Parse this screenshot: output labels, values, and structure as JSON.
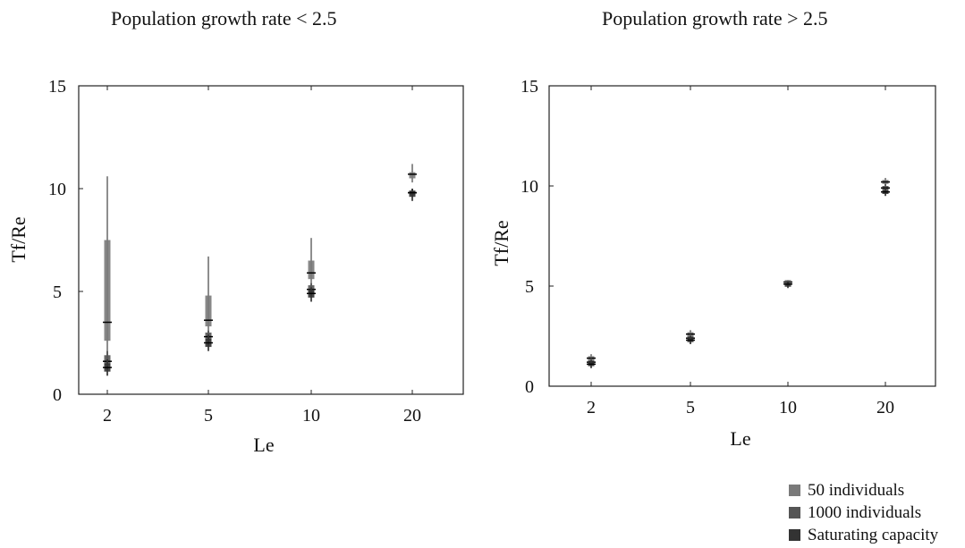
{
  "colors": {
    "series_50": "#7a7a7a",
    "series_1000": "#555555",
    "series_saturating": "#333333"
  },
  "legend": {
    "items": [
      {
        "label": "50 individuals",
        "color": "#7a7a7a"
      },
      {
        "label": "1000 individuals",
        "color": "#555555"
      },
      {
        "label": "Saturating capacity",
        "color": "#333333"
      }
    ]
  },
  "chart_data": [
    {
      "type": "box",
      "title": "Population growth rate < 2.5",
      "xlabel": "Le",
      "ylabel": "Tf/Re",
      "categories": [
        "2",
        "5",
        "10",
        "20"
      ],
      "yticks": [
        "0",
        "5",
        "10",
        "15"
      ],
      "ylim": [
        0,
        15
      ],
      "grid": false,
      "series": [
        {
          "name": "50 individuals",
          "boxes": [
            {
              "category": "2",
              "min": 1.8,
              "q1": 2.6,
              "median": 3.5,
              "q3": 7.5,
              "max": 10.6
            },
            {
              "category": "5",
              "min": 3.0,
              "q1": 3.3,
              "median": 3.6,
              "q3": 4.8,
              "max": 6.7
            },
            {
              "category": "10",
              "min": 5.3,
              "q1": 5.6,
              "median": 5.9,
              "q3": 6.5,
              "max": 7.6
            },
            {
              "category": "20",
              "min": 10.3,
              "q1": 10.5,
              "median": 10.7,
              "q3": 10.8,
              "max": 11.2
            }
          ]
        },
        {
          "name": "1000 individuals",
          "boxes": [
            {
              "category": "2",
              "min": 1.2,
              "q1": 1.4,
              "median": 1.6,
              "q3": 1.9,
              "max": 2.1
            },
            {
              "category": "5",
              "min": 2.4,
              "q1": 2.6,
              "median": 2.8,
              "q3": 3.0,
              "max": 3.1
            },
            {
              "category": "10",
              "min": 4.8,
              "q1": 4.9,
              "median": 5.1,
              "q3": 5.3,
              "max": 5.4
            },
            {
              "category": "20",
              "min": 9.6,
              "q1": 9.7,
              "median": 9.8,
              "q3": 9.9,
              "max": 10.0
            }
          ]
        },
        {
          "name": "Saturating capacity",
          "boxes": [
            {
              "category": "2",
              "min": 0.9,
              "q1": 1.1,
              "median": 1.3,
              "q3": 1.5,
              "max": 1.7
            },
            {
              "category": "5",
              "min": 2.1,
              "q1": 2.3,
              "median": 2.5,
              "q3": 2.7,
              "max": 2.9
            },
            {
              "category": "10",
              "min": 4.5,
              "q1": 4.7,
              "median": 4.9,
              "q3": 5.1,
              "max": 5.2
            },
            {
              "category": "20",
              "min": 9.4,
              "q1": 9.6,
              "median": 9.8,
              "q3": 9.9,
              "max": 10.0
            }
          ]
        }
      ]
    },
    {
      "type": "box",
      "title": "Population growth rate > 2.5",
      "xlabel": "Le",
      "ylabel": "Tf/Re",
      "categories": [
        "2",
        "5",
        "10",
        "20"
      ],
      "yticks": [
        "0",
        "5",
        "10",
        "15"
      ],
      "ylim": [
        0,
        15
      ],
      "grid": false,
      "series": [
        {
          "name": "50 individuals",
          "boxes": [
            {
              "category": "2",
              "min": 1.2,
              "q1": 1.3,
              "median": 1.4,
              "q3": 1.5,
              "max": 1.6
            },
            {
              "category": "5",
              "min": 2.4,
              "q1": 2.5,
              "median": 2.6,
              "q3": 2.7,
              "max": 2.8
            },
            {
              "category": "10",
              "min": 5.1,
              "q1": 5.2,
              "median": 5.2,
              "q3": 5.3,
              "max": 5.3
            },
            {
              "category": "20",
              "min": 10.0,
              "q1": 10.1,
              "median": 10.2,
              "q3": 10.3,
              "max": 10.4
            }
          ]
        },
        {
          "name": "1000 individuals",
          "boxes": [
            {
              "category": "2",
              "min": 1.0,
              "q1": 1.1,
              "median": 1.2,
              "q3": 1.3,
              "max": 1.4
            },
            {
              "category": "5",
              "min": 2.2,
              "q1": 2.3,
              "median": 2.4,
              "q3": 2.5,
              "max": 2.6
            },
            {
              "category": "10",
              "min": 5.0,
              "q1": 5.1,
              "median": 5.1,
              "q3": 5.2,
              "max": 5.2
            },
            {
              "category": "20",
              "min": 9.7,
              "q1": 9.8,
              "median": 9.9,
              "q3": 10.0,
              "max": 10.1
            }
          ]
        },
        {
          "name": "Saturating capacity",
          "boxes": [
            {
              "category": "2",
              "min": 0.9,
              "q1": 1.0,
              "median": 1.1,
              "q3": 1.2,
              "max": 1.3
            },
            {
              "category": "5",
              "min": 2.1,
              "q1": 2.2,
              "median": 2.3,
              "q3": 2.4,
              "max": 2.5
            },
            {
              "category": "10",
              "min": 4.9,
              "q1": 5.0,
              "median": 5.1,
              "q3": 5.1,
              "max": 5.2
            },
            {
              "category": "20",
              "min": 9.5,
              "q1": 9.6,
              "median": 9.7,
              "q3": 9.8,
              "max": 9.9
            }
          ]
        }
      ]
    }
  ]
}
